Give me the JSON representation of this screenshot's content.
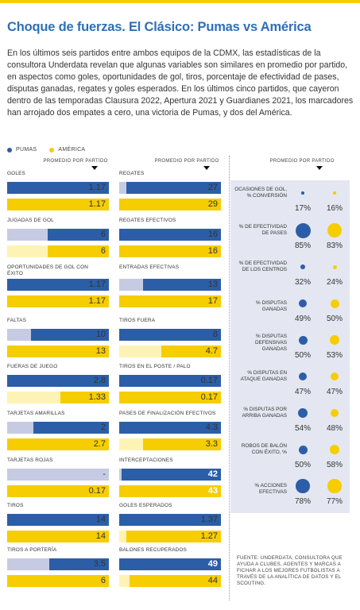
{
  "title": "Choque de fuerzas. El Clásico: Pumas vs América",
  "intro": "En los últimos seis partidos entre ambos equipos de la CDMX, las estadísticas de la consultora Underdata revelan que algunas variables son similares en promedio por partido, en aspectos como goles, oportunidades de gol, tiros, porcentaje de efectividad de pases, disputas ganadas, regates y goles esperados. En los últimos cinco partidos, que cayeron dentro de las temporadas Clausura 2022, Apertura 2021 y Guardianes 2021, los marcadores han arrojado dos empates a cero, una victoria de Pumas, y dos del América.",
  "legend": {
    "pumas": "PUMAS",
    "america": "AMÉRICA"
  },
  "colors": {
    "pumas": "#2c5ea8",
    "america": "#f6cd00",
    "pumas_bg": "#c6cbe3",
    "america_bg": "#fdf3b4",
    "title": "#2f6fb6"
  },
  "column_header": "PROMEDIO POR PARTIDO",
  "source": "FUENTE: UNDERDATA, CONSULTORA QUE AYUDA A CLUBES, AGENTES Y MARCAS A FICHAR A LOS MEJORES FUTBOLISTAS A TRAVÉS DE LA ANALÍTICA DE DATOS Y EL SCOUTING.",
  "chart_data": [
    {
      "type": "bar",
      "column": 1,
      "title": "",
      "series_names": [
        "Pumas",
        "América"
      ],
      "metrics": [
        {
          "label": "GOLES",
          "pumas": 1.17,
          "america": 1.17,
          "pumas_text": "1.17",
          "america_text": "1.17",
          "max": 1.17
        },
        {
          "label": "JUGADAS DE GOL",
          "pumas": 6,
          "america": 6,
          "pumas_text": "6",
          "america_text": "6",
          "max": 10
        },
        {
          "label": "OPORTUNIDADES DE GOL CON ÉXITO",
          "pumas": 1.17,
          "america": 1.17,
          "pumas_text": "1.17",
          "america_text": "1.17",
          "max": 1.17
        },
        {
          "label": "FALTAS",
          "pumas": 10,
          "america": 13,
          "pumas_text": "10",
          "america_text": "13",
          "max": 13
        },
        {
          "label": "FUERAS DE JUEGO",
          "pumas": 2.8,
          "america": 1.33,
          "pumas_text": "2.8",
          "america_text": "1.33",
          "max": 2.8
        },
        {
          "label": "TARJETAS AMARILLAS",
          "pumas": 2,
          "america": 2.7,
          "pumas_text": "2",
          "america_text": "2.7",
          "max": 2.7
        },
        {
          "label": "TARJETAS ROJAS",
          "pumas": 0,
          "america": 0.17,
          "pumas_text": "-",
          "america_text": "0.17",
          "max": 0.17
        },
        {
          "label": "TIROS",
          "pumas": 14,
          "america": 14,
          "pumas_text": "14",
          "america_text": "14",
          "max": 14
        },
        {
          "label": "TIROS A PORTERÍA",
          "pumas": 3.5,
          "america": 6,
          "pumas_text": "3.5",
          "america_text": "6",
          "max": 6
        }
      ]
    },
    {
      "type": "bar",
      "column": 2,
      "title": "",
      "series_names": [
        "Pumas",
        "América"
      ],
      "metrics": [
        {
          "label": "REGATES",
          "pumas": 27,
          "america": 29,
          "pumas_text": "27",
          "america_text": "29",
          "max": 29
        },
        {
          "label": "REGATES EFECTIVOS",
          "pumas": 16,
          "america": 16,
          "pumas_text": "16",
          "america_text": "16",
          "max": 16
        },
        {
          "label": "ENTRADAS EFECTIVAS",
          "pumas": 13,
          "america": 17,
          "pumas_text": "13",
          "america_text": "17",
          "max": 17
        },
        {
          "label": "TIROS FUERA",
          "pumas": 8,
          "america": 4.7,
          "pumas_text": "8",
          "america_text": "4.7",
          "max": 8
        },
        {
          "label": "TIROS EN EL POSTE / PALO",
          "pumas": 0.17,
          "america": 0.17,
          "pumas_text": "0.17",
          "america_text": "0.17",
          "max": 0.17
        },
        {
          "label": "PASES DE FINALIZACIÓN EFECTIVOS",
          "pumas": 4.3,
          "america": 3.3,
          "pumas_text": "4.3",
          "america_text": "3.3",
          "max": 4.3
        },
        {
          "label": "INTERCEPTACIONES",
          "pumas": 42,
          "america": 43,
          "pumas_text": "42",
          "america_text": "43",
          "max": 43
        },
        {
          "label": "GOLES ESPERADOS",
          "pumas": 1.37,
          "america": 1.27,
          "pumas_text": "1.37",
          "america_text": "1.27",
          "max": 1.37
        },
        {
          "label": "BALONES RECUPERADOS",
          "pumas": 49,
          "america": 44,
          "pumas_text": "49",
          "america_text": "44",
          "max": 49
        }
      ]
    },
    {
      "type": "scatter",
      "column": 3,
      "title": "",
      "series_names": [
        "Pumas",
        "América"
      ],
      "metrics": [
        {
          "label": "OCASIONES DE GOL, % CONVERSIÓN",
          "pumas": 17,
          "america": 16
        },
        {
          "label": "% DE EFECTIVIDAD DE PASES",
          "pumas": 85,
          "america": 83
        },
        {
          "label": "% DE EFECTIVIDAD DE LOS CENTROS",
          "pumas": 32,
          "america": 24
        },
        {
          "label": "% DISPUTAS GANADAS",
          "pumas": 49,
          "america": 50
        },
        {
          "label": "% DISPUTAS DEFENSIVAS GANADAS",
          "pumas": 50,
          "america": 53
        },
        {
          "label": "% DISPUTAS EN ATAQUE GANADAS",
          "pumas": 47,
          "america": 47
        },
        {
          "label": "% DISPUTAS POR ARRIBA GANADAS",
          "pumas": 54,
          "america": 48
        },
        {
          "label": "ROBOS DE BALÓN CON ÉXITO, %",
          "pumas": 50,
          "america": 58
        },
        {
          "label": "% ACCIONES EFECTIVAS",
          "pumas": 78,
          "america": 77
        }
      ],
      "unit": "%"
    }
  ]
}
